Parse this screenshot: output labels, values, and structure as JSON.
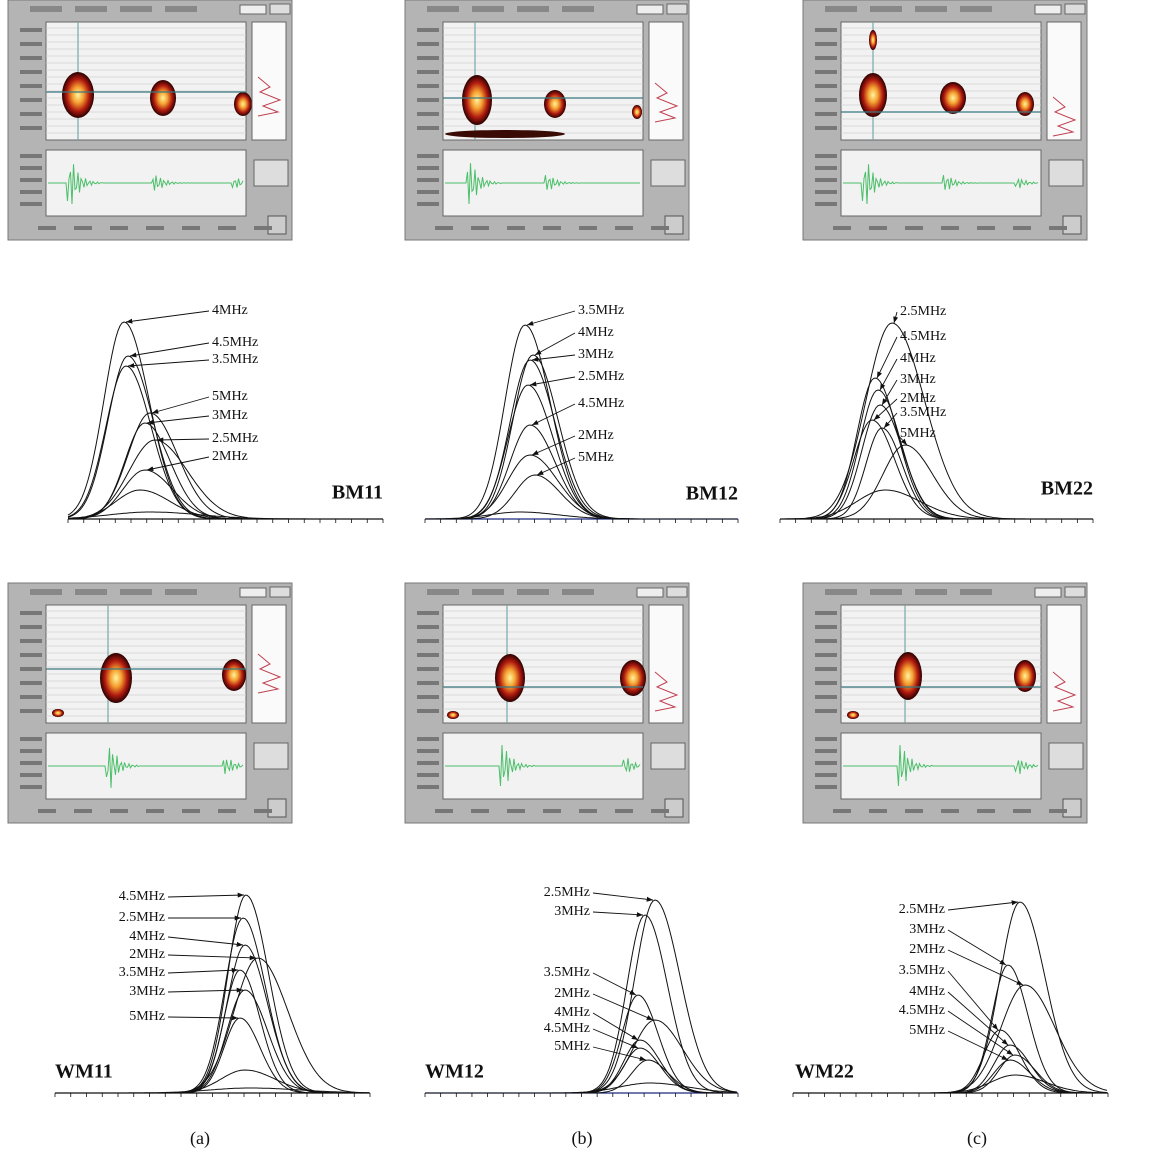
{
  "panels": [
    {
      "caption": "(a)",
      "top": {
        "name": "BM11",
        "labels": [
          "4MHz",
          "4.5MHz",
          "3.5MHz",
          "5MHz",
          "3MHz",
          "2.5MHz",
          "2MHz"
        ]
      },
      "bottom": {
        "name": "WM11",
        "labels": [
          "4.5MHz",
          "2.5MHz",
          "4MHz",
          "2MHz",
          "3.5MHz",
          "3MHz",
          "5MHz"
        ]
      }
    },
    {
      "caption": "(b)",
      "top": {
        "name": "BM12",
        "labels": [
          "3.5MHz",
          "4MHz",
          "3MHz",
          "2.5MHz",
          "4.5MHz",
          "2MHz",
          "5MHz"
        ]
      },
      "bottom": {
        "name": "WM12",
        "labels": [
          "2.5MHz",
          "3MHz",
          "3.5MHz",
          "2MHz",
          "4MHz",
          "4.5MHz",
          "5MHz"
        ]
      }
    },
    {
      "caption": "(c)",
      "top": {
        "name": "BM22",
        "labels": [
          "2.5MHz",
          "4.5MHz",
          "4MHz",
          "3MHz",
          "2MHz",
          "3.5MHz",
          "5MHz"
        ]
      },
      "bottom": {
        "name": "WM22",
        "labels": [
          "2.5MHz",
          "3MHz",
          "2MHz",
          "3.5MHz",
          "4MHz",
          "4.5MHz",
          "5MHz"
        ]
      }
    }
  ]
}
